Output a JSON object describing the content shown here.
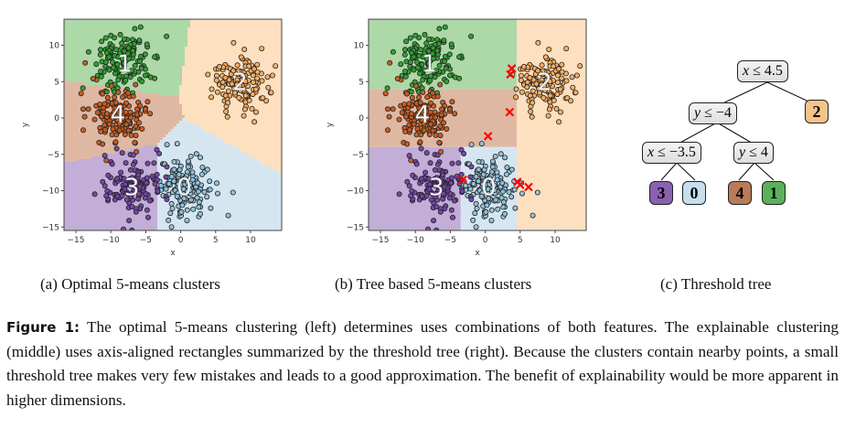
{
  "figure": {
    "label": "Figure 1:",
    "caption": "The optimal 5-means clustering (left) determines uses combinations of both features. The explainable clustering (middle) uses axis-aligned rectangles summarized by the threshold tree (right). Because the clusters contain nearby points, a small threshold tree makes very few mistakes and leads to a good approximation. The benefit of explainability would be more apparent in higher dimensions."
  },
  "subcaptions": {
    "a": "(a) Optimal 5-means clusters",
    "b": "(b) Tree based 5-means clusters",
    "c": "(c) Threshold tree"
  },
  "colors": {
    "cluster0_point": "#8ec1da",
    "cluster0_region": "#d6e6f1",
    "cluster1_point": "#2ca02c",
    "cluster1_region": "#add8a8",
    "cluster2_point": "#fdae61",
    "cluster2_region": "#fde0c0",
    "cluster3_point": "#7442a8",
    "cluster3_region": "#c2aed6",
    "cluster4_point": "#c85a1e",
    "cluster4_region": "#dfb8a3",
    "mistake_marker": "#ff0000",
    "leaf0": "#c6dff0",
    "leaf1": "#5bb15b",
    "leaf2": "#f3c48a",
    "leaf3": "#8a62b0",
    "leaf4": "#b97a57"
  },
  "chart_data": [
    {
      "type": "scatter",
      "title": "(a) Optimal 5-means clusters",
      "xlabel": "x",
      "ylabel": "y",
      "xlim": [
        -16.5,
        14.5
      ],
      "ylim": [
        -15.5,
        13.5
      ],
      "xticks": [
        -15,
        -10,
        -5,
        0,
        5,
        10
      ],
      "yticks": [
        10,
        5,
        0,
        -5,
        -10,
        -15
      ],
      "grid": false,
      "clusters": [
        {
          "label": "0",
          "center": [
            0.5,
            -9.5
          ],
          "std": 2.0,
          "n": 200
        },
        {
          "label": "1",
          "center": [
            -8,
            7.5
          ],
          "std": 2.0,
          "n": 200
        },
        {
          "label": "2",
          "center": [
            8.5,
            5
          ],
          "std": 2.0,
          "n": 200
        },
        {
          "label": "3",
          "center": [
            -7,
            -9.5
          ],
          "std": 2.0,
          "n": 200
        },
        {
          "label": "4",
          "center": [
            -9,
            0.5
          ],
          "std": 2.0,
          "n": 200
        }
      ],
      "regions": "voronoi of cluster centers"
    },
    {
      "type": "scatter",
      "title": "(b) Tree based 5-means clusters",
      "xlabel": "x",
      "ylabel": "y",
      "xlim": [
        -16.5,
        14.5
      ],
      "ylim": [
        -15.5,
        13.5
      ],
      "xticks": [
        -15,
        -10,
        -5,
        0,
        5,
        10
      ],
      "yticks": [
        10,
        5,
        0,
        -5,
        -10,
        -15
      ],
      "grid": false,
      "regions": [
        {
          "label": "2",
          "rule": "x > 4.5"
        },
        {
          "label": "3",
          "rule": "x <= 4.5, y <= -4, x <= -3.5"
        },
        {
          "label": "0",
          "rule": "x <= 4.5, y <= -4, x > -3.5"
        },
        {
          "label": "4",
          "rule": "x <= 4.5, -4 < y <= 4"
        },
        {
          "label": "1",
          "rule": "x <= 4.5, y > 4"
        }
      ],
      "mistakes": [
        [
          3.8,
          6.8
        ],
        [
          3.6,
          6.0
        ],
        [
          3.5,
          0.8
        ],
        [
          0.4,
          -2.5
        ],
        [
          -3.2,
          -8.5
        ],
        [
          4.6,
          -8.8
        ],
        [
          5.0,
          -9.2
        ],
        [
          6.2,
          -9.5
        ]
      ]
    }
  ],
  "tree": {
    "root": {
      "var": "x",
      "op": "≤",
      "val": "4.5"
    },
    "n1": {
      "var": "y",
      "op": "≤",
      "val": "−4"
    },
    "n2": {
      "var": "x",
      "op": "≤",
      "val": "−3.5"
    },
    "n3": {
      "var": "y",
      "op": "≤",
      "val": "4"
    },
    "leaves": [
      "3",
      "0",
      "4",
      "1",
      "2"
    ]
  }
}
